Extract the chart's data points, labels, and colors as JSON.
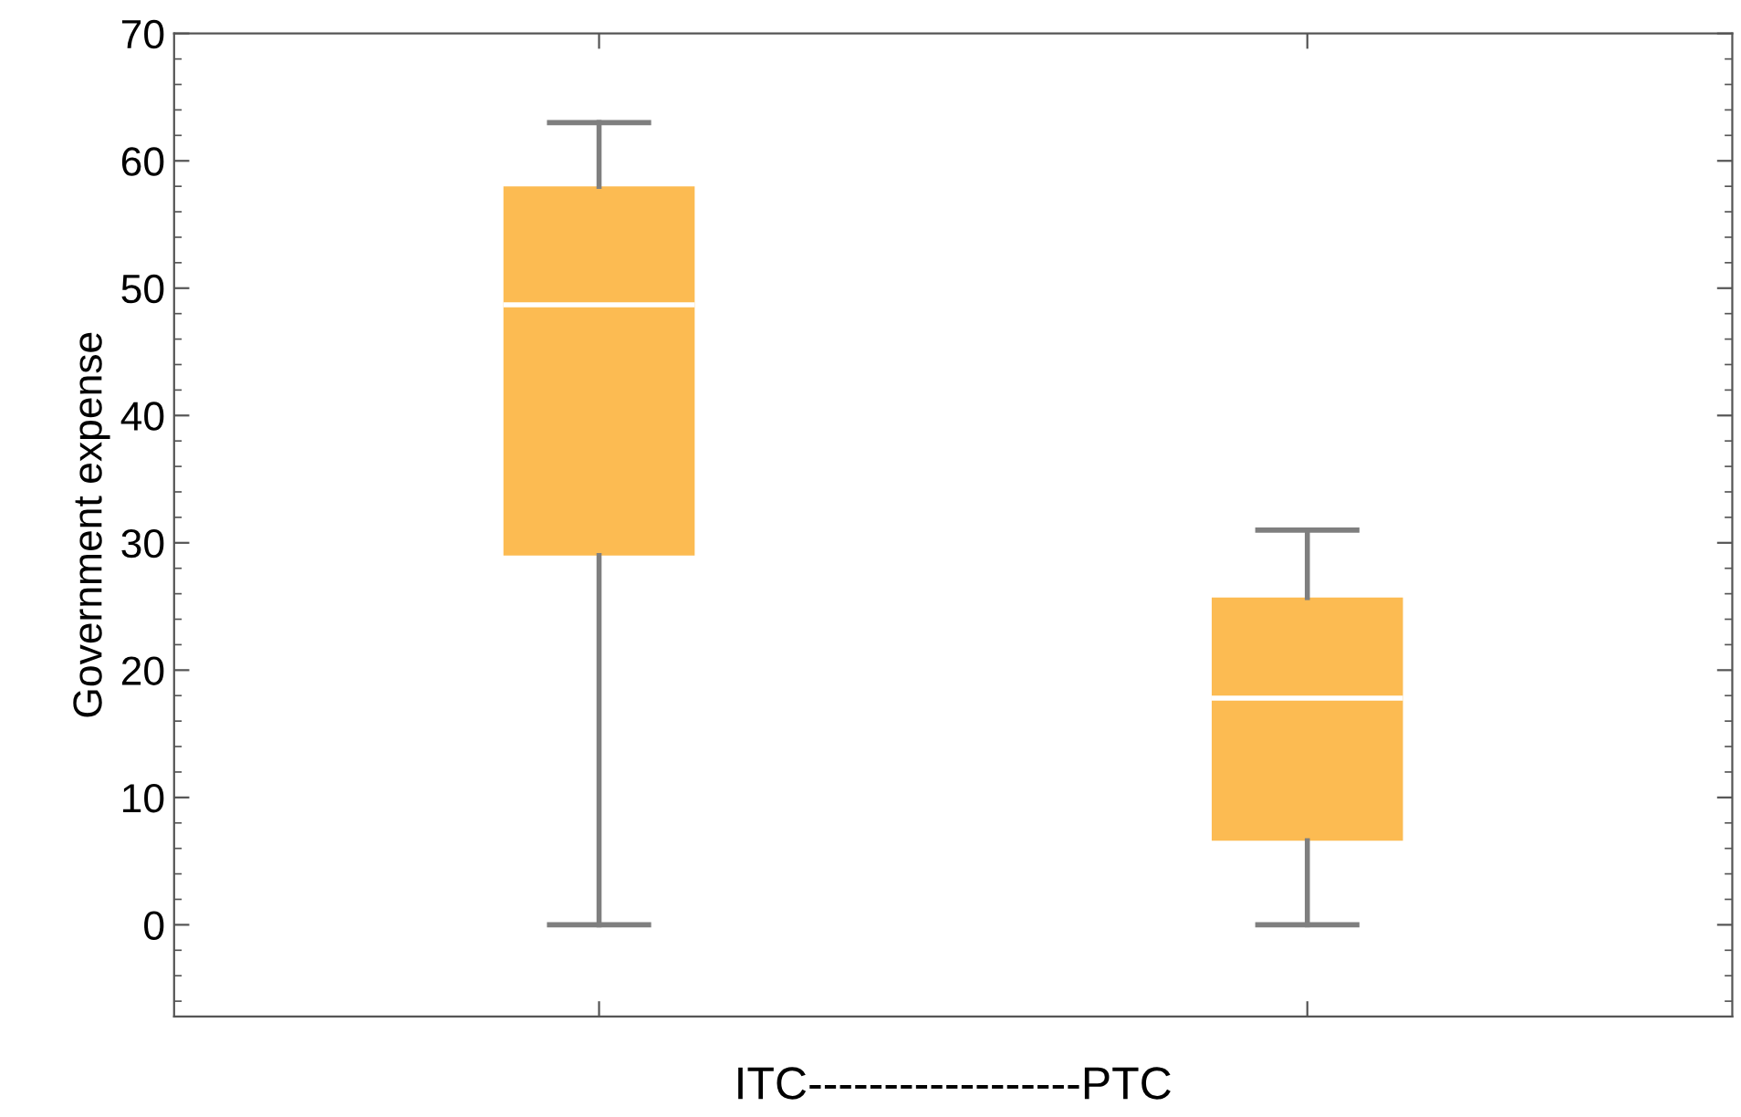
{
  "chart_data": {
    "type": "box",
    "ylabel": "Government expense",
    "xlabel": "ITC------------------PTC",
    "categories": [
      null,
      null
    ],
    "series": [
      {
        "color": "#fcbb52",
        "boxes": [
          {
            "low": 0,
            "q1": 29,
            "median": 48.7,
            "q3": 58,
            "high": 63
          },
          {
            "low": 0,
            "q1": 6.6,
            "median": 17.8,
            "q3": 25.7,
            "high": 31
          }
        ]
      }
    ],
    "ylim": [
      -7.2,
      70
    ],
    "yticks": [
      0,
      10,
      20,
      30,
      40,
      50,
      60,
      70
    ],
    "grid": false,
    "legend": false
  }
}
